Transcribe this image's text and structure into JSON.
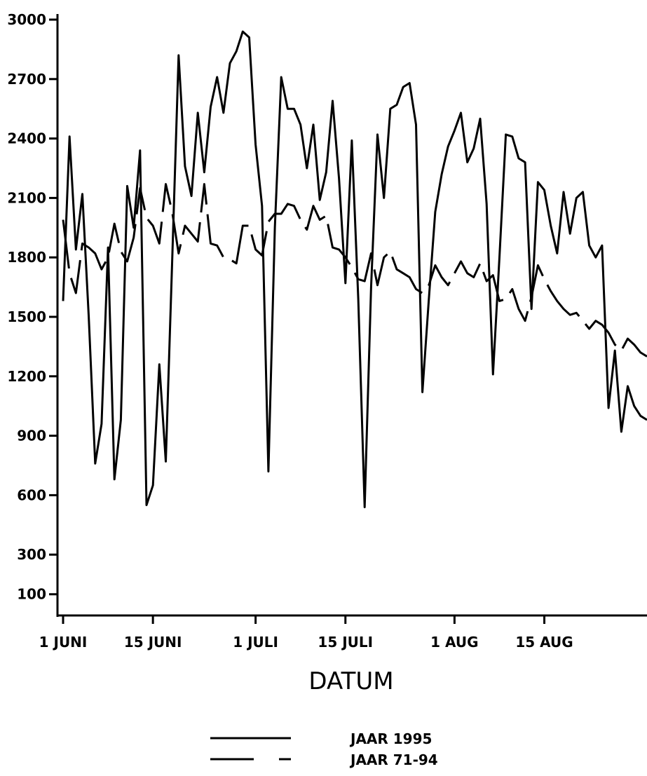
{
  "chart_data": {
    "type": "line",
    "xlabel": "DATUM",
    "ylabel": "",
    "y_ticks": [
      3000,
      2700,
      2400,
      2100,
      1800,
      1500,
      1200,
      900,
      600,
      300,
      100
    ],
    "y_tick_labels": [
      "3000",
      "2700",
      "2400",
      "2100",
      "1800",
      "1500",
      "1200",
      "900",
      "600",
      "300",
      "100"
    ],
    "x_range_days": [
      0,
      91
    ],
    "y_range": [
      0,
      3000
    ],
    "x_ticks": [
      {
        "day": 0,
        "label": "1 JUNI"
      },
      {
        "day": 14,
        "label": "15 JUNI"
      },
      {
        "day": 30,
        "label": "1 JULI"
      },
      {
        "day": 44,
        "label": "15 JULI"
      },
      {
        "day": 61,
        "label": "1 AUG"
      },
      {
        "day": 75,
        "label": "15 AUG"
      }
    ],
    "legend_position": "bottom-center",
    "legend": [
      {
        "label": "JAAR 1995",
        "style": "solid"
      },
      {
        "label": "JAAR 71-94",
        "style": "dashed"
      }
    ],
    "series": [
      {
        "name": "JAAR 1995",
        "style": "solid",
        "x": [
          0,
          1,
          2,
          3,
          4,
          5,
          6,
          7,
          8,
          9,
          10,
          11,
          12,
          13,
          14,
          15,
          16,
          17,
          18,
          19,
          20,
          21,
          22,
          23,
          24,
          25,
          26,
          27,
          28,
          29,
          30,
          31,
          32,
          33,
          34,
          35,
          36,
          37,
          38,
          39,
          40,
          41,
          42,
          43,
          44,
          45,
          46,
          47,
          48,
          49,
          50,
          51,
          52,
          53,
          54,
          55,
          56,
          57,
          58,
          59,
          60,
          61,
          62,
          63,
          64,
          65,
          66,
          67,
          68,
          69,
          70,
          71,
          72,
          73,
          74,
          75,
          76,
          77,
          78,
          79,
          80,
          81,
          82,
          83,
          84,
          85,
          86,
          87,
          88,
          89,
          90,
          91
        ],
        "y": [
          1580,
          2410,
          1840,
          2120,
          1500,
          760,
          960,
          1850,
          680,
          980,
          2160,
          1950,
          2340,
          550,
          650,
          1260,
          770,
          1780,
          2820,
          2260,
          2110,
          2530,
          2230,
          2560,
          2710,
          2530,
          2780,
          2840,
          2940,
          2910,
          2370,
          2060,
          720,
          1950,
          2710,
          2550,
          2550,
          2470,
          2250,
          2470,
          2090,
          2230,
          2590,
          2200,
          1670,
          2390,
          1590,
          540,
          1650,
          2420,
          2100,
          2550,
          2570,
          2660,
          2680,
          2470,
          1120,
          1590,
          2030,
          2220,
          2360,
          2440,
          2530,
          2280,
          2350,
          2500,
          2070,
          1210,
          1800,
          2420,
          2410,
          2300,
          2280,
          1540,
          2180,
          2140,
          1960,
          1820,
          2130,
          1920,
          2100,
          2130,
          1860,
          1800,
          1860,
          1040,
          1330,
          920,
          1150,
          1050,
          1000,
          980
        ]
      },
      {
        "name": "JAAR 71-94",
        "style": "dashed",
        "x": [
          0,
          1,
          2,
          3,
          4,
          5,
          6,
          7,
          8,
          9,
          10,
          11,
          12,
          13,
          14,
          15,
          16,
          17,
          18,
          19,
          20,
          21,
          22,
          23,
          24,
          25,
          26,
          27,
          28,
          29,
          30,
          31,
          32,
          33,
          34,
          35,
          36,
          37,
          38,
          39,
          40,
          41,
          42,
          43,
          44,
          45,
          46,
          47,
          48,
          49,
          50,
          51,
          52,
          53,
          54,
          55,
          56,
          57,
          58,
          59,
          60,
          61,
          62,
          63,
          64,
          65,
          66,
          67,
          68,
          69,
          70,
          71,
          72,
          73,
          74,
          75,
          76,
          77,
          78,
          79,
          80,
          81,
          82,
          83,
          84,
          85,
          86,
          87,
          88,
          89,
          90,
          91
        ],
        "y": [
          1990,
          1720,
          1620,
          1870,
          1850,
          1820,
          1740,
          1800,
          1970,
          1830,
          1780,
          1900,
          2150,
          2000,
          1960,
          1870,
          2170,
          2030,
          1820,
          1960,
          1920,
          1880,
          2170,
          1870,
          1860,
          1800,
          1790,
          1770,
          1960,
          1960,
          1840,
          1810,
          1980,
          2020,
          2020,
          2070,
          2060,
          1990,
          1940,
          2060,
          1990,
          2010,
          1850,
          1840,
          1800,
          1750,
          1690,
          1680,
          1820,
          1660,
          1800,
          1830,
          1740,
          1720,
          1700,
          1640,
          1620,
          1660,
          1760,
          1700,
          1660,
          1720,
          1780,
          1720,
          1700,
          1770,
          1680,
          1710,
          1580,
          1590,
          1640,
          1540,
          1480,
          1600,
          1760,
          1690,
          1630,
          1580,
          1540,
          1510,
          1520,
          1480,
          1440,
          1480,
          1460,
          1420,
          1360,
          1330,
          1390,
          1360,
          1320,
          1300
        ]
      }
    ]
  }
}
